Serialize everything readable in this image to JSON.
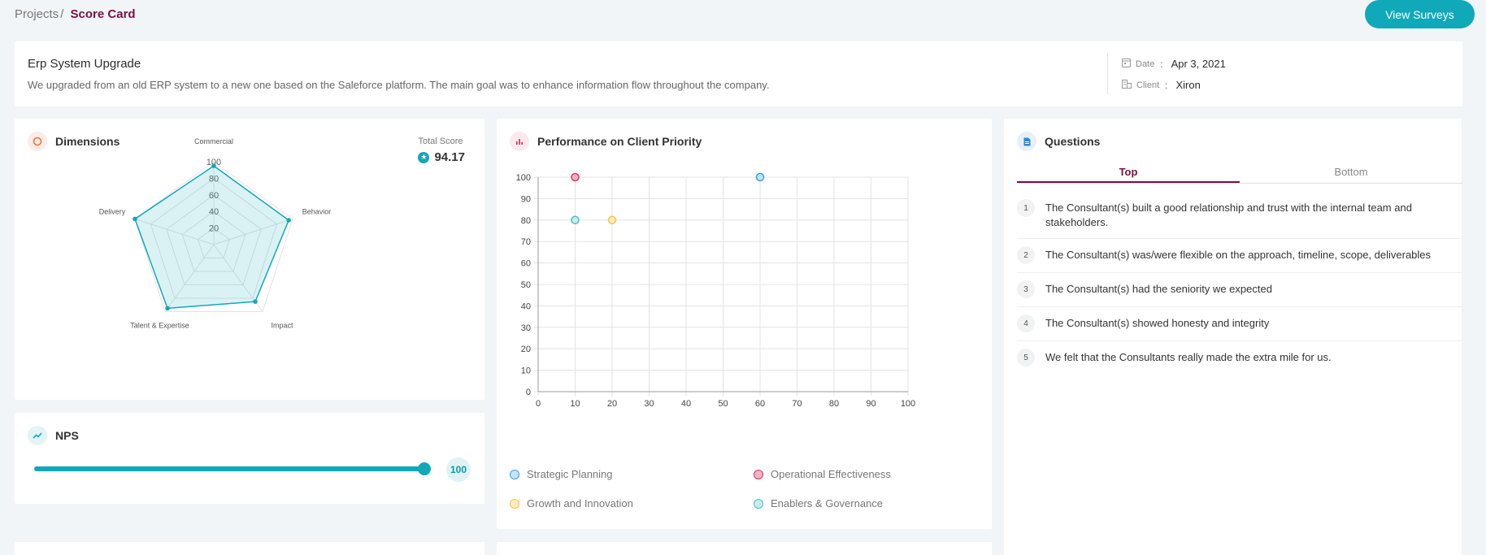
{
  "breadcrumb": {
    "parent": "Projects",
    "separator": "/",
    "current": "Score Card"
  },
  "header": {
    "view_surveys_label": "View Surveys"
  },
  "project": {
    "title": "Erp System Upgrade",
    "description": "We upgraded from an old ERP system to a new one based on the Saleforce platform. The main goal was to enhance information flow throughout the company.",
    "date_label": "Date",
    "date_value": "Apr 3, 2021",
    "client_label": "Client",
    "client_value": "Xiron",
    "separator": ":"
  },
  "dimensions": {
    "title": "Dimensions",
    "total_score_label": "Total Score",
    "total_score_value": "94.17"
  },
  "nps": {
    "title": "NPS",
    "value": "100",
    "fraction": 1.0
  },
  "performance": {
    "title": "Performance on Client Priority"
  },
  "questions": {
    "title": "Questions",
    "tabs": [
      {
        "label": "Top",
        "active": true
      },
      {
        "label": "Bottom",
        "active": false
      }
    ],
    "items": [
      {
        "num": "1",
        "text": "The Consultant(s) built a good relationship and trust with the internal team and stakeholders."
      },
      {
        "num": "2",
        "text": "The Consultant(s) was/were flexible on the approach, timeline, scope, deliverables"
      },
      {
        "num": "3",
        "text": "The Consultant(s) had the seniority we expected"
      },
      {
        "num": "4",
        "text": "The Consultant(s) showed honesty and integrity"
      },
      {
        "num": "5",
        "text": "We felt that the Consultants really made the extra mile for us."
      }
    ]
  },
  "colors": {
    "accent": "#10a9b9",
    "brand": "#7a1048"
  },
  "chart_data": [
    {
      "type": "radar",
      "axes": [
        "Commercial",
        "Behavior",
        "Impact",
        "Talent & Expertise",
        "Delivery"
      ],
      "values": [
        95,
        95,
        85,
        95,
        100
      ],
      "ticks": [
        "20",
        "40",
        "60",
        "80",
        "100"
      ],
      "ylim": [
        0,
        100
      ],
      "color": "#10a9b9",
      "grid": true
    },
    {
      "type": "scatter",
      "xlim": [
        0,
        100
      ],
      "ylim": [
        0,
        100
      ],
      "xticks": [
        "0",
        "10",
        "20",
        "30",
        "40",
        "50",
        "60",
        "70",
        "80",
        "90",
        "100"
      ],
      "yticks": [
        "0",
        "10",
        "20",
        "30",
        "40",
        "50",
        "60",
        "70",
        "80",
        "90",
        "100"
      ],
      "grid": true,
      "legend_position": "bottom",
      "series": [
        {
          "name": "Strategic Planning",
          "color": "#36a2eb",
          "fill": "#c6e4f5",
          "points": [
            [
              60,
              100
            ]
          ]
        },
        {
          "name": "Operational Effectiveness",
          "color": "#e0335a",
          "fill": "#f6b3c3",
          "points": [
            [
              10,
              100
            ]
          ]
        },
        {
          "name": "Growth and Innovation",
          "color": "#f5c542",
          "fill": "#fcecc4",
          "points": [
            [
              20,
              80
            ]
          ]
        },
        {
          "name": "Enablers & Governance",
          "color": "#4bc0c0",
          "fill": "#c9ebeb",
          "points": [
            [
              10,
              80
            ]
          ]
        }
      ]
    }
  ]
}
